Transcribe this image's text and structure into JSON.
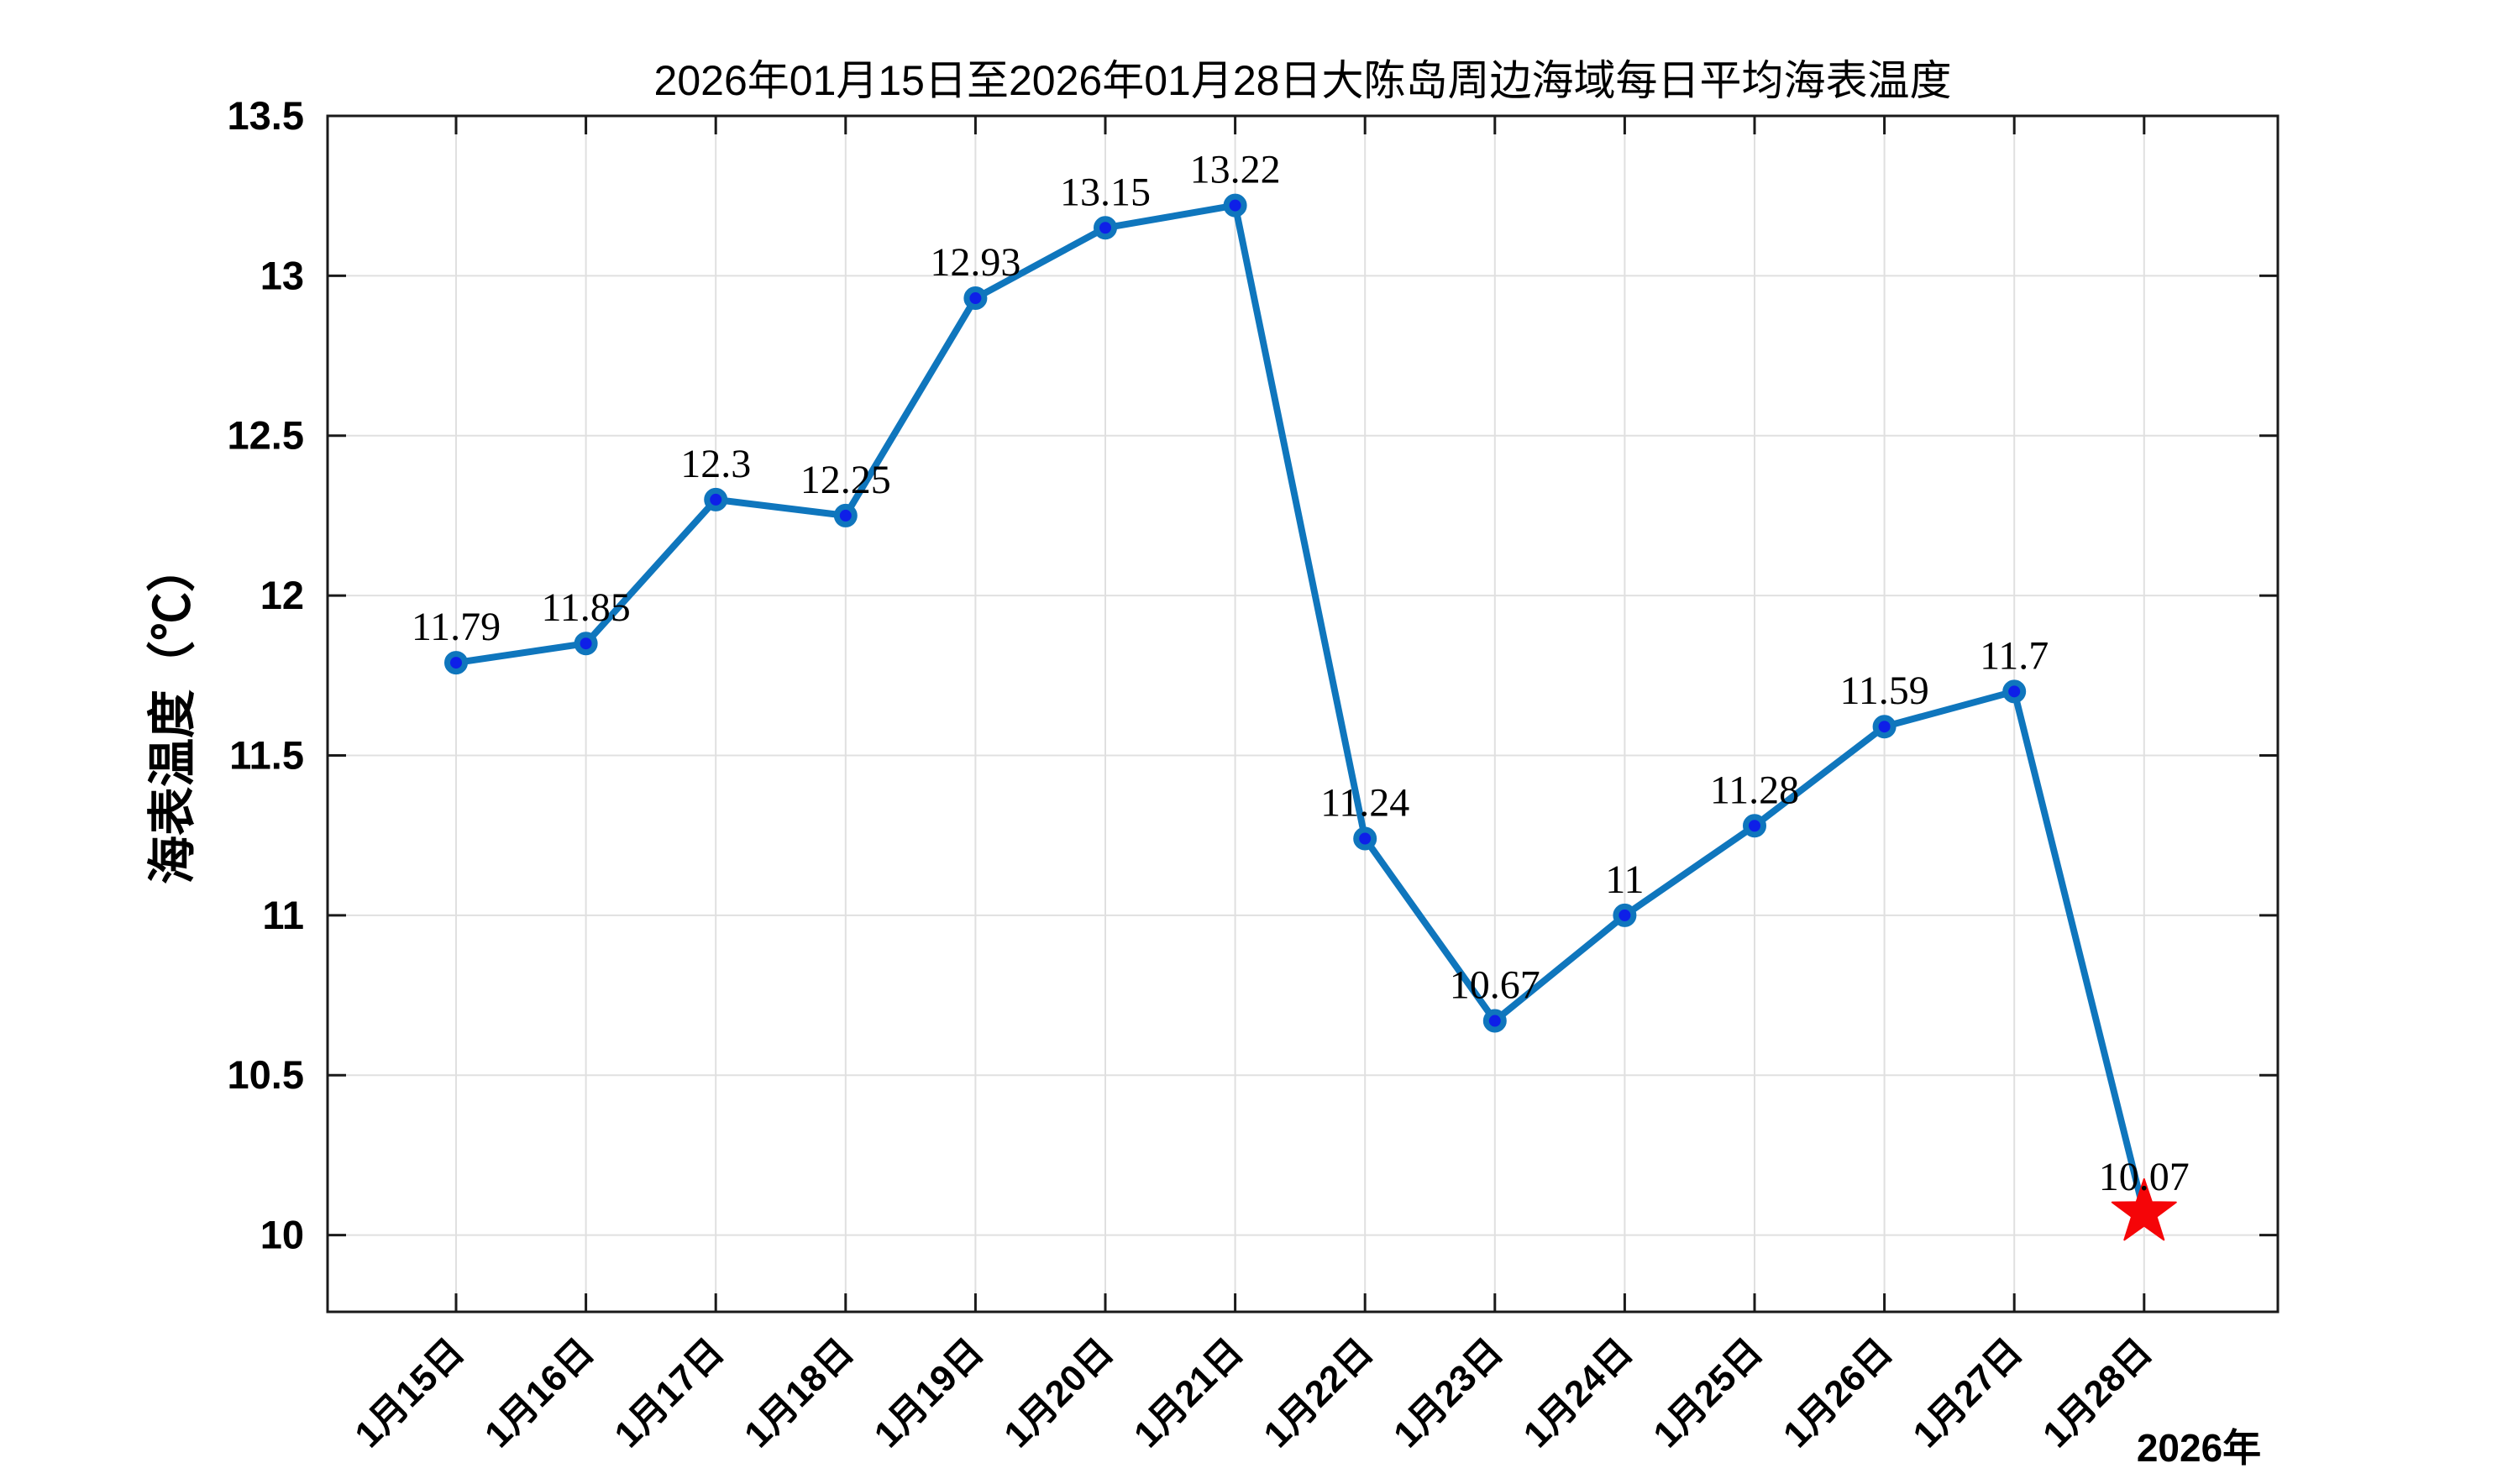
{
  "chart_data": {
    "type": "line",
    "title": "2026年01月15日至2026年01月28日大陈岛周边海域每日平均海表温度",
    "ylabel": "海表温度（℃）",
    "x_secondary_label": "2026年",
    "categories": [
      "1月15日",
      "1月16日",
      "1月17日",
      "1月18日",
      "1月19日",
      "1月20日",
      "1月21日",
      "1月22日",
      "1月23日",
      "1月24日",
      "1月25日",
      "1月26日",
      "1月27日",
      "1月28日"
    ],
    "values": [
      11.79,
      11.85,
      12.3,
      12.25,
      12.93,
      13.15,
      13.22,
      11.24,
      10.67,
      11,
      11.28,
      11.59,
      11.7,
      10.07
    ],
    "point_labels": [
      "11.79",
      "11.85",
      "12.3",
      "12.25",
      "12.93",
      "13.15",
      "13.22",
      "11.24",
      "10.67",
      "11",
      "11.28",
      "11.59",
      "11.7",
      "10.07"
    ],
    "yticks": [
      10,
      10.5,
      11,
      11.5,
      12,
      12.5,
      13,
      13.5
    ],
    "ytick_labels": [
      "10",
      "10.5",
      "11",
      "11.5",
      "12",
      "12.5",
      "13",
      "13.5"
    ],
    "ylim": [
      9.76,
      13.5
    ],
    "grid": true,
    "legend": "none",
    "highlight_last_point": {
      "marker": "star",
      "label": "10.07"
    },
    "colors": {
      "line": "#0f76bd",
      "marker_face": "#0e1fe8",
      "marker_edge": "#0f76bd",
      "star": "#f50508",
      "grid": "#e0e0e0",
      "axis": "#1a1a1a",
      "text": "#000000"
    }
  }
}
